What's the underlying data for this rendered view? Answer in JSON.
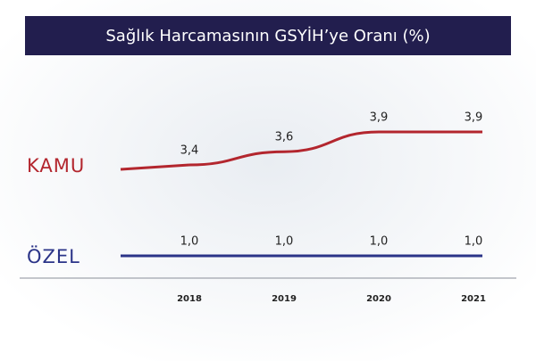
{
  "chart_data": {
    "type": "line",
    "title": "Sağlık Harcamasının GSYİH’ye Oranı (%)",
    "categories": [
      "2018",
      "2019",
      "2020",
      "2021"
    ],
    "series": [
      {
        "name": "KAMU",
        "color": "#b3262e",
        "values": [
          3.4,
          3.6,
          3.9,
          3.9
        ],
        "value_labels": [
          "3,4",
          "3,6",
          "3,9",
          "3,9"
        ]
      },
      {
        "name": "ÖZEL",
        "color": "#2b3488",
        "values": [
          1.0,
          1.0,
          1.0,
          1.0
        ],
        "value_labels": [
          "1,0",
          "1,0",
          "1,0",
          "1,0"
        ]
      }
    ]
  }
}
